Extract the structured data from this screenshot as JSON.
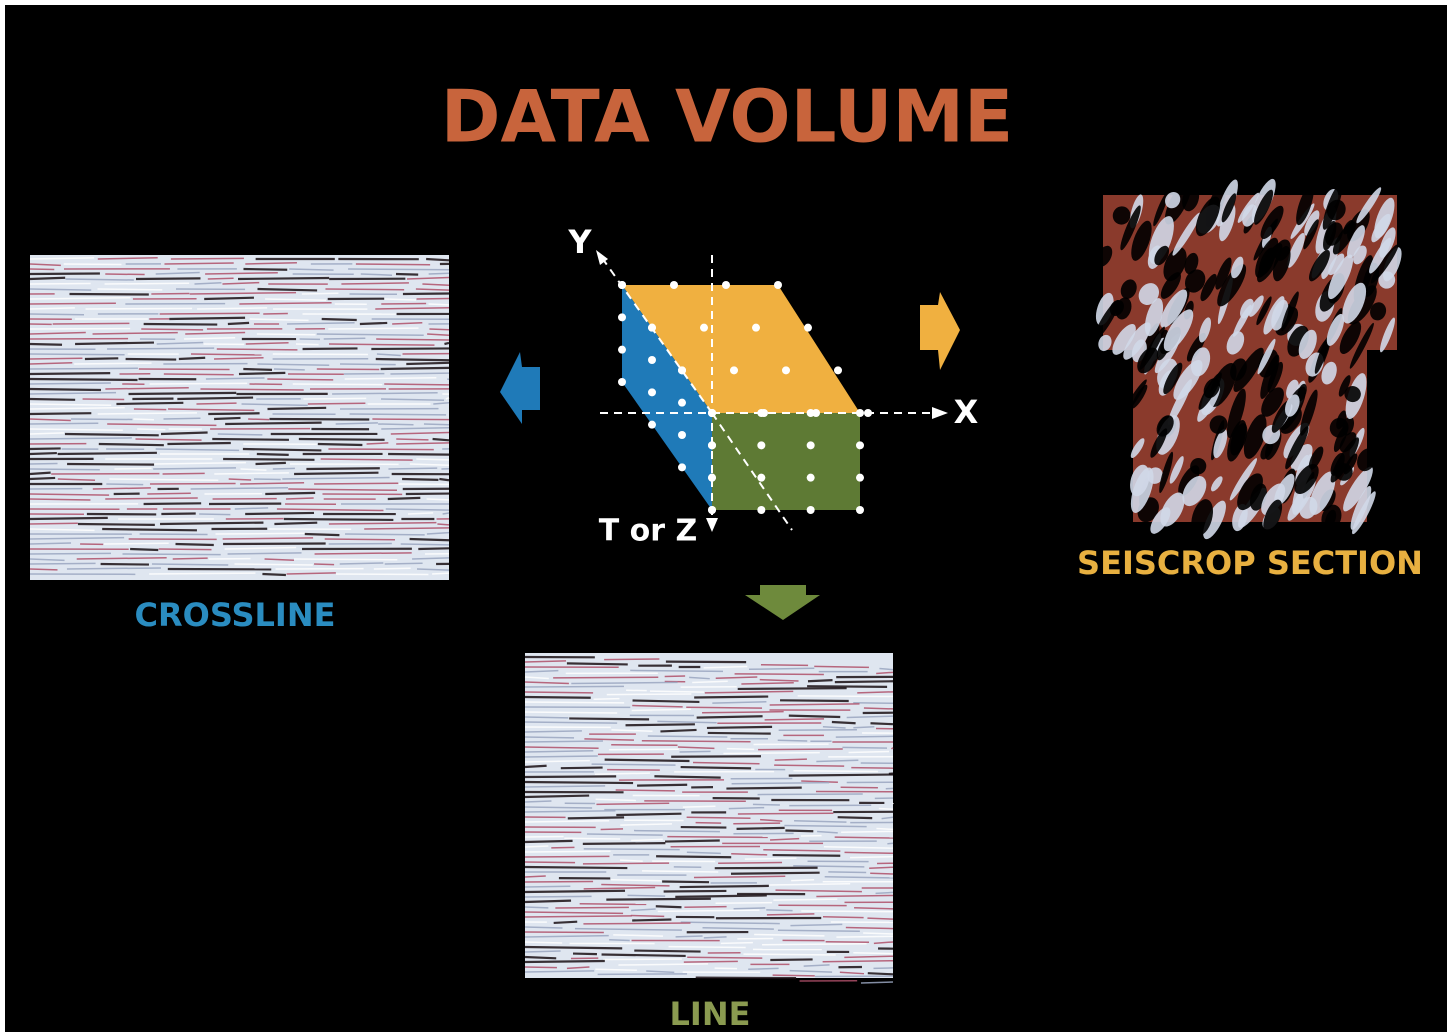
{
  "title": "DATA VOLUME",
  "cube": {
    "axes": {
      "y": "Y",
      "x": "X",
      "z": "T or Z"
    }
  },
  "panels": {
    "crossline": "CROSSLINE",
    "seiscrop": "SEISCROP SECTION",
    "line": "LINE"
  }
}
